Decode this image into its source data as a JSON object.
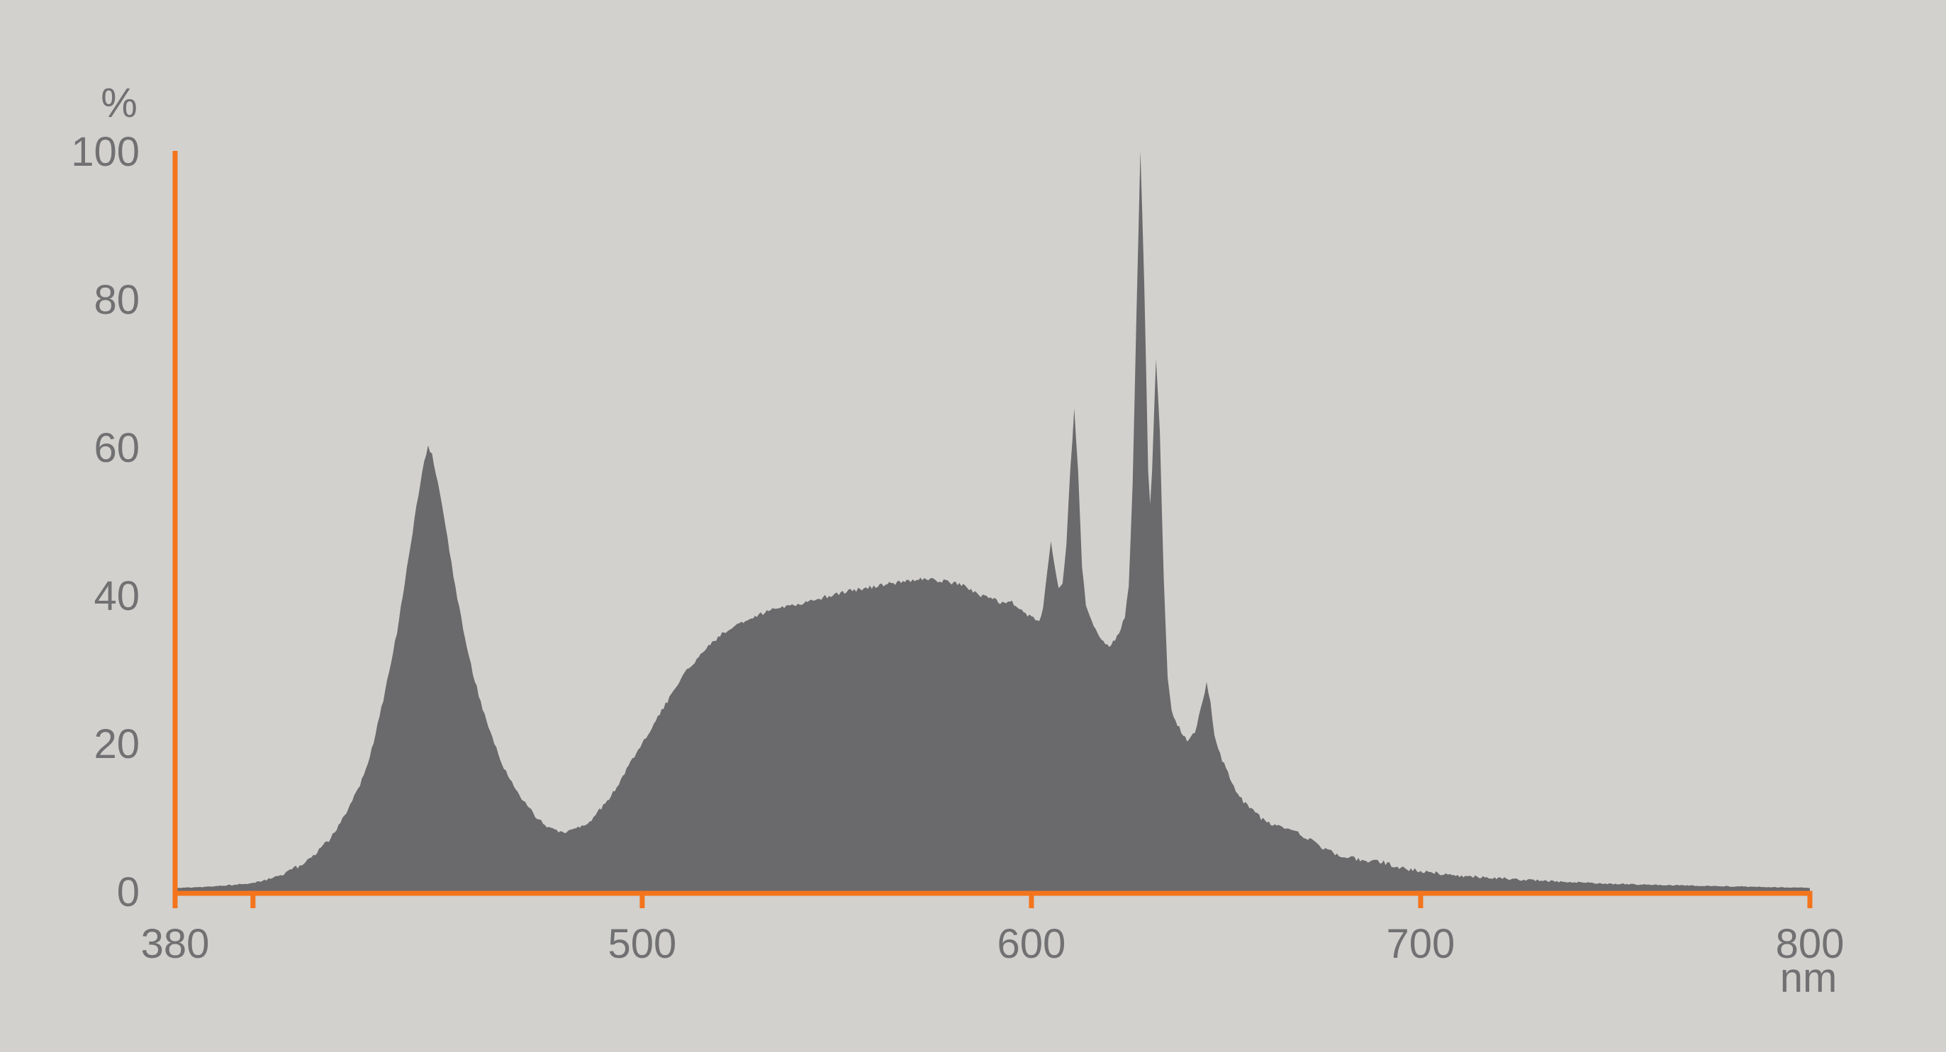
{
  "chart_data": {
    "type": "area",
    "title": "",
    "xlabel": "nm",
    "ylabel": "%",
    "xlim": [
      380,
      800
    ],
    "ylim": [
      0,
      100
    ],
    "grid": false,
    "legend": false,
    "x_ticks": [
      380,
      400,
      500,
      600,
      700,
      800
    ],
    "x_tick_labels": [
      "380",
      "",
      "500",
      "600",
      "700",
      "800"
    ],
    "y_ticks": [
      0,
      20,
      40,
      60,
      80,
      100
    ],
    "y_tick_labels": [
      "0",
      "20",
      "40",
      "60",
      "80",
      "100"
    ],
    "colors": {
      "background": "#D2D1CE",
      "area_fill": "#6A6A6C",
      "axis": "#F4741C",
      "tick_labels": "#717173"
    },
    "series": [
      {
        "points": [
          [
            380,
            0.4
          ],
          [
            384,
            0.5
          ],
          [
            388,
            0.6
          ],
          [
            392,
            0.75
          ],
          [
            396,
            0.9
          ],
          [
            400,
            1.1
          ],
          [
            404,
            1.6
          ],
          [
            408,
            2.4
          ],
          [
            412,
            3.4
          ],
          [
            416,
            5
          ],
          [
            420,
            7.2
          ],
          [
            424,
            10.5
          ],
          [
            428,
            15
          ],
          [
            431,
            20
          ],
          [
            434,
            27
          ],
          [
            437,
            35
          ],
          [
            440,
            45
          ],
          [
            442,
            52
          ],
          [
            444,
            58
          ],
          [
            445,
            60
          ],
          [
            446,
            59
          ],
          [
            448,
            54
          ],
          [
            450,
            47.5
          ],
          [
            452,
            41
          ],
          [
            454,
            35.5
          ],
          [
            456,
            30.5
          ],
          [
            458,
            26.5
          ],
          [
            460,
            23
          ],
          [
            463,
            18.5
          ],
          [
            466,
            15
          ],
          [
            469,
            12.5
          ],
          [
            472,
            10.5
          ],
          [
            475,
            9
          ],
          [
            478,
            8.1
          ],
          [
            481,
            8
          ],
          [
            484,
            8.6
          ],
          [
            487,
            9.8
          ],
          [
            490,
            11.5
          ],
          [
            493,
            13.6
          ],
          [
            496,
            16.5
          ],
          [
            500,
            20
          ],
          [
            505,
            24.4
          ],
          [
            511,
            29.5
          ],
          [
            517,
            33.3
          ],
          [
            523,
            35.7
          ],
          [
            529,
            37.1
          ],
          [
            535,
            38.3
          ],
          [
            542,
            39.1
          ],
          [
            548,
            39.9
          ],
          [
            554,
            40.6
          ],
          [
            560,
            41.2
          ],
          [
            566,
            41.7
          ],
          [
            572,
            42.2
          ],
          [
            578,
            41.9
          ],
          [
            582,
            41.4
          ],
          [
            586,
            40.2
          ],
          [
            590,
            39.4
          ],
          [
            593,
            38.9
          ],
          [
            595,
            39.2
          ],
          [
            597,
            37.9
          ],
          [
            600,
            37.1
          ],
          [
            602,
            36.7
          ],
          [
            603,
            38
          ],
          [
            604,
            43
          ],
          [
            605,
            47.5
          ],
          [
            606,
            44
          ],
          [
            607,
            40.8
          ],
          [
            608,
            41.5
          ],
          [
            609,
            47
          ],
          [
            610,
            57
          ],
          [
            611,
            65
          ],
          [
            612,
            57
          ],
          [
            613,
            44
          ],
          [
            614,
            38.5
          ],
          [
            616,
            35.9
          ],
          [
            618,
            34.2
          ],
          [
            620,
            33
          ],
          [
            622,
            34.3
          ],
          [
            624,
            37
          ],
          [
            625,
            41
          ],
          [
            626,
            55
          ],
          [
            627,
            78
          ],
          [
            628,
            100
          ],
          [
            629,
            82
          ],
          [
            630,
            57
          ],
          [
            630.5,
            52.5
          ],
          [
            631,
            57
          ],
          [
            632,
            72
          ],
          [
            633,
            62
          ],
          [
            634,
            42
          ],
          [
            635,
            29
          ],
          [
            636,
            24.5
          ],
          [
            638,
            22
          ],
          [
            640,
            20.5
          ],
          [
            642,
            21.5
          ],
          [
            644,
            25.5
          ],
          [
            645,
            28.5
          ],
          [
            646,
            25.5
          ],
          [
            647,
            21
          ],
          [
            648,
            19
          ],
          [
            650,
            16.5
          ],
          [
            652,
            14
          ],
          [
            654,
            12.4
          ],
          [
            657,
            10.8
          ],
          [
            660,
            9.4
          ],
          [
            663,
            8.8
          ],
          [
            666,
            8.4
          ],
          [
            668,
            8.1
          ],
          [
            671,
            7.1
          ],
          [
            675,
            5.9
          ],
          [
            679,
            4.8
          ],
          [
            683,
            4.4
          ],
          [
            687,
            4.1
          ],
          [
            690,
            4
          ],
          [
            693,
            3.4
          ],
          [
            697,
            3
          ],
          [
            700,
            2.7
          ],
          [
            705,
            2.4
          ],
          [
            710,
            2.1
          ],
          [
            716,
            1.9
          ],
          [
            722,
            1.7
          ],
          [
            730,
            1.45
          ],
          [
            740,
            1.2
          ],
          [
            750,
            1
          ],
          [
            760,
            0.85
          ],
          [
            770,
            0.75
          ],
          [
            780,
            0.65
          ],
          [
            790,
            0.55
          ],
          [
            800,
            0.45
          ]
        ]
      }
    ]
  }
}
